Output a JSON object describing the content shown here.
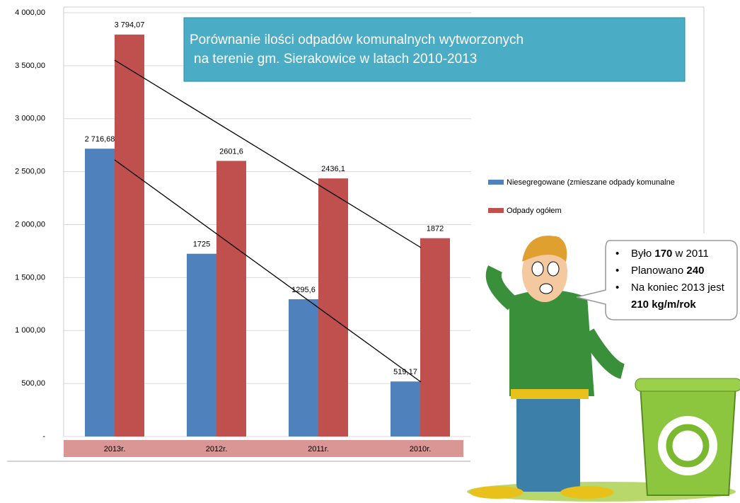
{
  "chart_data": {
    "type": "bar",
    "title": [
      "Porównanie ilości odpadów komunalnych wytworzonych",
      "na terenie gm. Sierakowice w latach  2010-2013"
    ],
    "categories": [
      "2013r.",
      "2012r.",
      "2011r.",
      "2010r."
    ],
    "series": [
      {
        "name": "Niesegregowane  (zmieszane odpady komunalne",
        "color": "#4f81bd",
        "values": [
          2716.68,
          1725,
          1295.6,
          519.17
        ],
        "value_labels": [
          "2 716,68",
          "1725",
          "1295,6",
          "519,17"
        ]
      },
      {
        "name": "Odpady ogółem",
        "color": "#c0504d",
        "values": [
          3794.07,
          2601.6,
          2436.1,
          1872
        ],
        "value_labels": [
          "3 794,07",
          "2601,6",
          "2436,1",
          "1872"
        ]
      }
    ],
    "ylim": [
      0,
      4000
    ],
    "yticks": [
      {
        "value": 0,
        "label": "-"
      },
      {
        "value": 500,
        "label": "500,00"
      },
      {
        "value": 1000,
        "label": "1 000,00"
      },
      {
        "value": 1500,
        "label": "1 500,00"
      },
      {
        "value": 2000,
        "label": "2 000,00"
      },
      {
        "value": 2500,
        "label": "2 500,00"
      },
      {
        "value": 3000,
        "label": "3 000,00"
      },
      {
        "value": 3500,
        "label": "3 500,00"
      },
      {
        "value": 4000,
        "label": "4 000,00"
      }
    ],
    "grid": true
  },
  "callout": {
    "items": [
      [
        "Było ",
        "170",
        " w 2011"
      ],
      [
        "Planowano ",
        "240"
      ],
      [
        "Na koniec 2013 jest"
      ]
    ],
    "emphasis": "210 kg/m/rok"
  }
}
